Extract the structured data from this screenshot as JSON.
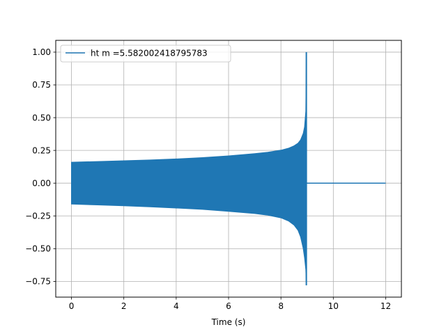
{
  "chart_data": {
    "type": "line",
    "title": "",
    "xlabel": "Time (s)",
    "ylabel": "",
    "xlim": [
      -0.6,
      12.6
    ],
    "ylim": [
      -0.87,
      1.09
    ],
    "x_ticks": [
      0,
      2,
      4,
      6,
      8,
      10,
      12
    ],
    "x_tick_labels": [
      "0",
      "2",
      "4",
      "6",
      "8",
      "10",
      "12"
    ],
    "y_ticks": [
      -0.75,
      -0.5,
      -0.25,
      0.0,
      0.25,
      0.5,
      0.75,
      1.0
    ],
    "y_tick_labels": [
      "−0.75",
      "−0.50",
      "−0.25",
      "0.00",
      "0.25",
      "0.50",
      "0.75",
      "1.00"
    ],
    "grid": true,
    "legend_position": "top-left",
    "series": [
      {
        "name": "ht m =5.582002418795783",
        "color": "#1f77b4",
        "envelope": {
          "x": [
            0.0,
            1.0,
            2.0,
            3.0,
            4.0,
            5.0,
            6.0,
            7.0,
            7.5,
            8.0,
            8.3,
            8.5,
            8.65,
            8.75,
            8.85,
            8.9,
            8.95,
            8.97
          ],
          "upper": [
            0.16,
            0.165,
            0.171,
            0.177,
            0.185,
            0.195,
            0.208,
            0.225,
            0.236,
            0.252,
            0.268,
            0.285,
            0.305,
            0.33,
            0.38,
            0.43,
            0.55,
            1.0
          ],
          "lower": [
            -0.16,
            -0.166,
            -0.173,
            -0.181,
            -0.19,
            -0.2,
            -0.215,
            -0.232,
            -0.245,
            -0.265,
            -0.29,
            -0.32,
            -0.36,
            -0.41,
            -0.5,
            -0.57,
            -0.66,
            -0.78
          ]
        },
        "ringdown": {
          "x": [
            8.97,
            12.0
          ],
          "y": [
            0.0,
            0.0
          ]
        }
      }
    ]
  }
}
